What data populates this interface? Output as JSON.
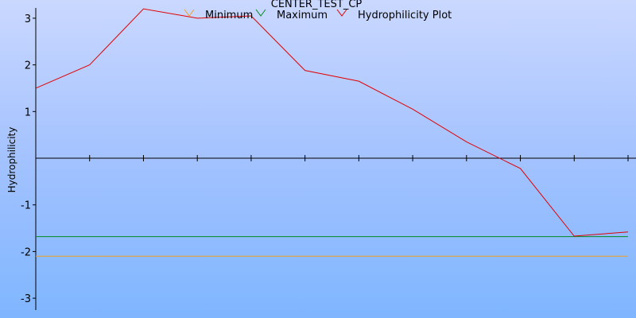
{
  "chart_data": {
    "type": "line",
    "title": "CENTER_TEST_CP",
    "ylabel": "Hydrophilicity",
    "xlabel": "",
    "ylim": [
      -3.25,
      3.25
    ],
    "yticks": [
      3,
      2,
      1,
      -1,
      -2,
      -3
    ],
    "ytick_labels": [
      "3",
      "2",
      "1",
      "-1",
      "-2",
      "-3"
    ],
    "x": [
      0,
      1,
      2,
      3,
      4,
      5,
      6,
      7,
      8,
      9,
      10,
      11
    ],
    "xlim": [
      0,
      11
    ],
    "legend": {
      "placement": "top-center",
      "entries": [
        {
          "name": "Minimum",
          "color": "#f0a020"
        },
        {
          "name": "Maximum",
          "color": "#008a1e"
        },
        {
          "name": "Hydrophilicity Plot",
          "color": "#e30000"
        }
      ]
    },
    "series": [
      {
        "name": "Hydrophilicity Plot",
        "color": "#e30000",
        "values": [
          1.5,
          2.0,
          3.2,
          3.0,
          3.05,
          1.88,
          1.65,
          1.05,
          0.35,
          -0.22,
          -1.67,
          -1.58
        ]
      },
      {
        "name": "Maximum",
        "color": "#008a1e",
        "constant": -1.68
      },
      {
        "name": "Minimum",
        "color": "#f0a020",
        "constant": -2.1
      }
    ]
  }
}
